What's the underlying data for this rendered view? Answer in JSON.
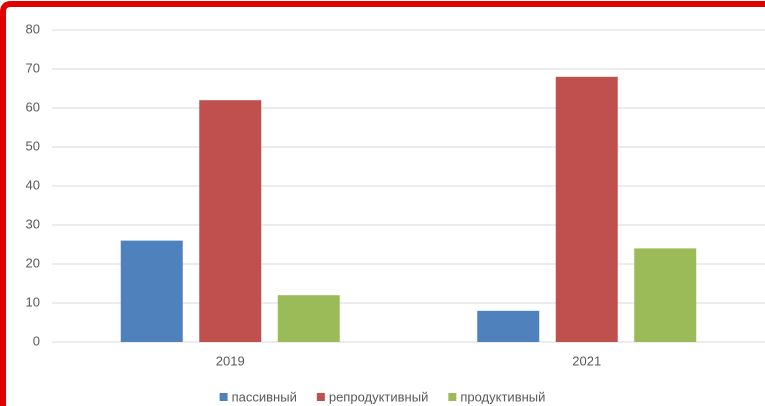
{
  "chart_data": {
    "type": "bar",
    "categories": [
      "2019",
      "2021"
    ],
    "series": [
      {
        "name": "пассивный",
        "color": "#4f81bd",
        "values": [
          26,
          8
        ]
      },
      {
        "name": "репродуктивный",
        "color": "#c0504d",
        "values": [
          62,
          68
        ]
      },
      {
        "name": "продуктивный",
        "color": "#9bbb59",
        "values": [
          12,
          24
        ]
      }
    ],
    "ylim": [
      0,
      80
    ],
    "yticks": [
      0,
      10,
      20,
      30,
      40,
      50,
      60,
      70,
      80
    ],
    "grid": true,
    "legend": "bottom"
  }
}
